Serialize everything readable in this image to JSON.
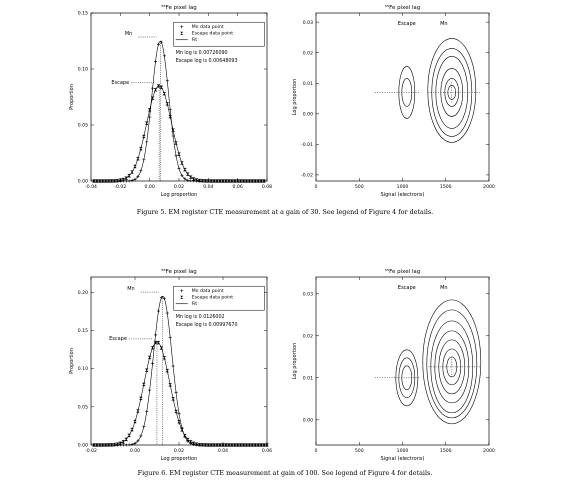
{
  "figure5": {
    "caption": "Figure 5. EM register CTE measurement at a gain of 30. See legend of Figure 4 for details.",
    "hist": {
      "title": "⁵⁵Fe pixel lag",
      "xlabel": "Log proportion",
      "ylabel": "Proportion",
      "xticks": [
        "-0.04",
        "-0.02",
        "0.00",
        "0.02",
        "0.04",
        "0.06",
        "0.08"
      ],
      "yticks": [
        "0.00",
        "0.05",
        "0.10",
        "0.15"
      ],
      "peak_labels": {
        "mn": "Mn",
        "escape": "Escape"
      },
      "legend": [
        "Mn data point",
        "Escape data point",
        "Fit"
      ],
      "mn_log_text": "Mn log is 0.00726090",
      "escape_log_text": "Escape log is 0.00648093"
    },
    "contour": {
      "title": "⁵⁵Fe pixel lag",
      "xlabel": "Signal (electrons)",
      "ylabel": "Log proportion",
      "xticks": [
        "0",
        "500",
        "1000",
        "1500",
        "2000"
      ],
      "yticks": [
        "-0.02",
        "-0.01",
        "0.00",
        "0.01",
        "0.02",
        "0.03"
      ],
      "labels": {
        "escape": "Escape",
        "mn": "Mn"
      }
    }
  },
  "figure6": {
    "caption": "Figure 6. EM register CTE measurement at gain of 100. See legend of Figure 4 for details.",
    "hist": {
      "title": "⁵⁵Fe pixel lag",
      "xlabel": "Log proportion",
      "ylabel": "Proportion",
      "xticks": [
        "-0.02",
        "0.00",
        "0.02",
        "0.04",
        "0.06"
      ],
      "yticks": [
        "0.00",
        "0.05",
        "0.10",
        "0.15",
        "0.20"
      ],
      "peak_labels": {
        "mn": "Mn",
        "escape": "Escape"
      },
      "legend": [
        "Mn data point",
        "Escape data point",
        "Fit"
      ],
      "mn_log_text": "Mn log is 0.0126002",
      "escape_log_text": "Escape log is 0.00997670"
    },
    "contour": {
      "title": "⁵⁵Fe pixel lag",
      "xlabel": "Signal (electrons)",
      "ylabel": "Log proportion",
      "xticks": [
        "0",
        "500",
        "1000",
        "1500",
        "2000"
      ],
      "yticks": [
        "0.00",
        "0.01",
        "0.02",
        "0.03"
      ],
      "labels": {
        "escape": "Escape",
        "mn": "Mn"
      }
    }
  },
  "chart_data": [
    {
      "type": "line",
      "title": "⁵⁵Fe pixel lag",
      "xlabel": "Log proportion",
      "ylabel": "Proportion",
      "xlim": [
        -0.04,
        0.08
      ],
      "ylim": [
        0,
        0.15
      ],
      "series": [
        {
          "name": "Mn data point",
          "peak_x": 0.0072609,
          "peak_y": 0.125,
          "sigma": 0.0058
        },
        {
          "name": "Escape data point",
          "peak_x": 0.00648093,
          "peak_y": 0.085,
          "sigma": 0.0085
        }
      ]
    },
    {
      "type": "scatter",
      "title": "⁵⁵Fe pixel lag",
      "xlabel": "Signal (electrons)",
      "ylabel": "Log proportion",
      "xlim": [
        0,
        2000
      ],
      "ylim": [
        -0.022,
        0.033
      ],
      "clusters": [
        {
          "name": "Escape",
          "center_signal": 1050,
          "center_log": 0.007
        },
        {
          "name": "Mn",
          "center_signal": 1570,
          "center_log": 0.007
        }
      ]
    },
    {
      "type": "line",
      "title": "⁵⁵Fe pixel lag",
      "xlabel": "Log proportion",
      "ylabel": "Proportion",
      "xlim": [
        -0.02,
        0.06
      ],
      "ylim": [
        0,
        0.22
      ],
      "series": [
        {
          "name": "Mn data point",
          "peak_x": 0.0126002,
          "peak_y": 0.195,
          "sigma": 0.0042
        },
        {
          "name": "Escape data point",
          "peak_x": 0.0099767,
          "peak_y": 0.135,
          "sigma": 0.0058
        }
      ]
    },
    {
      "type": "scatter",
      "title": "⁵⁵Fe pixel lag",
      "xlabel": "Signal (electrons)",
      "ylabel": "Log proportion",
      "xlim": [
        0,
        2000
      ],
      "ylim": [
        -0.006,
        0.034
      ],
      "clusters": [
        {
          "name": "Escape",
          "center_signal": 1050,
          "center_log": 0.01
        },
        {
          "name": "Mn",
          "center_signal": 1570,
          "center_log": 0.0126
        }
      ]
    }
  ]
}
